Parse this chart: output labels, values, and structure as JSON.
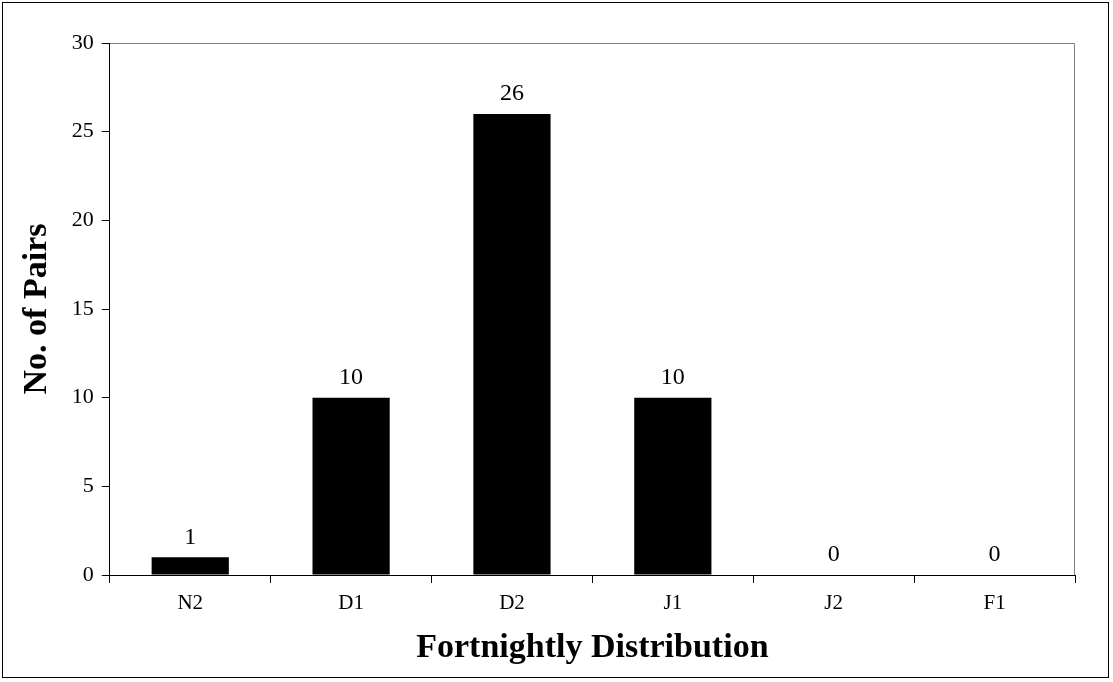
{
  "chart_data": {
    "type": "bar",
    "xlabel": "Fortnightly Distribution",
    "ylabel": "No. of Pairs",
    "categories": [
      "N2",
      "D1",
      "D2",
      "J1",
      "J2",
      "F1"
    ],
    "values": [
      1,
      10,
      26,
      10,
      0,
      0
    ],
    "color": "#000000",
    "ylim": [
      0,
      30
    ],
    "yticks": [
      0,
      5,
      10,
      15,
      20,
      25,
      30
    ],
    "grid": false,
    "legend": false,
    "data_labels": true
  }
}
